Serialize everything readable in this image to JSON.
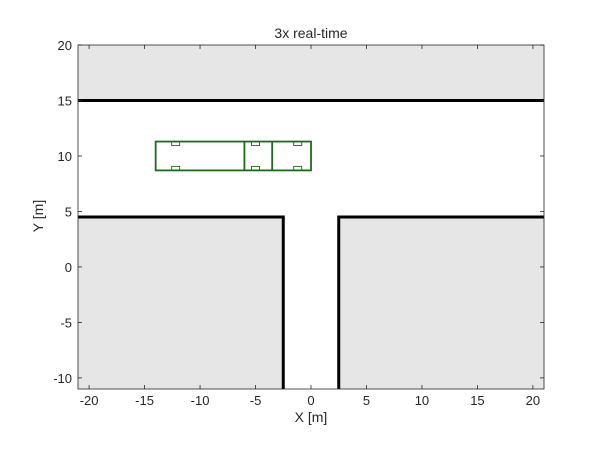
{
  "title": "3x real-time",
  "xlabel": "X [m]",
  "ylabel": "Y [m]",
  "colors": {
    "road": "#ffffff",
    "offroad": "#e6e6e6",
    "boundary": "#000000",
    "vehicle": "#1b6b1b",
    "axes_frame": "#262626"
  },
  "chart_data": {
    "type": "scatter",
    "title": "3x real-time",
    "xlabel": "X [m]",
    "ylabel": "Y [m]",
    "xlim": [
      -21,
      21
    ],
    "ylim": [
      -11,
      20
    ],
    "xticks": [
      -20,
      -15,
      -10,
      -5,
      0,
      5,
      10,
      15,
      20
    ],
    "yticks": [
      -10,
      -5,
      0,
      5,
      10,
      15,
      20
    ],
    "grid": false,
    "road_layout": {
      "top_boundary_y": 15,
      "side_boundary_y": 4.5,
      "branch_left_x": -2.5,
      "branch_right_x": 2.5
    },
    "vehicle": {
      "x_range": [
        -14,
        0
      ],
      "y_range": [
        8.7,
        11.3
      ],
      "unit_dividers_x": [
        -6,
        -3.5
      ]
    }
  }
}
